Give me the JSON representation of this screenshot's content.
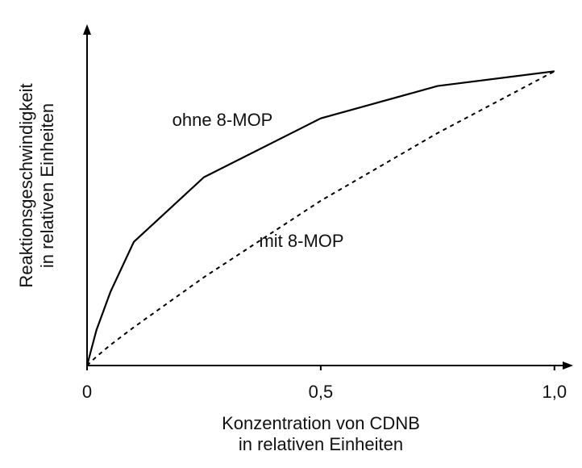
{
  "chart_data": {
    "type": "line",
    "xlabel": [
      "Konzentration von CDNB",
      "in relativen Einheiten"
    ],
    "ylabel": [
      "Reaktionsgeschwindigkeit",
      "in relativen Einheiten"
    ],
    "x": [
      0,
      0.02,
      0.05,
      0.1,
      0.25,
      0.5,
      0.75,
      1.0
    ],
    "series": [
      {
        "name": "ohne 8-MOP",
        "color": "#000000",
        "style": "solid",
        "values": [
          0,
          0.12,
          0.25,
          0.42,
          0.64,
          0.84,
          0.95,
          1.0
        ]
      },
      {
        "name": "mit 8-MOP",
        "color": "#000000",
        "style": "dashed",
        "values": [
          0,
          0.03,
          0.07,
          0.13,
          0.3,
          0.56,
          0.79,
          1.0
        ]
      }
    ],
    "xlim": [
      0,
      1.04
    ],
    "ylim": [
      0,
      1.16
    ],
    "xticks": [
      0,
      {
        "value": 0.5,
        "label": "0,5"
      },
      {
        "value": 1,
        "label": "1,0"
      }
    ],
    "grid": false
  }
}
